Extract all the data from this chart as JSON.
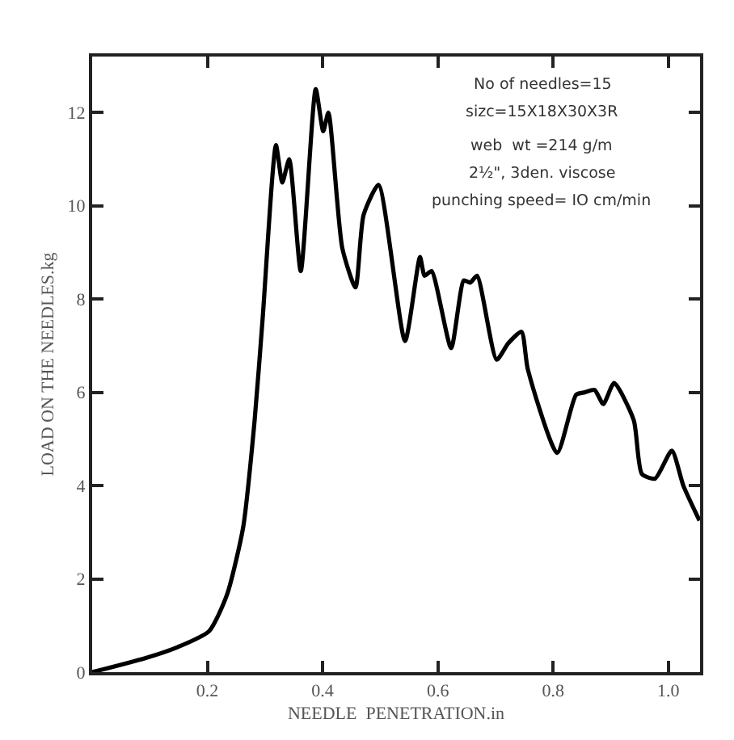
{
  "chart_data": {
    "type": "line",
    "xlabel": "NEEDLE  PENETRATION.in",
    "ylabel": "LOAD ON THE NEEDLES.kg",
    "annotations": [
      "No of needles=15",
      "sizc=15X18X30X3R",
      "web  wt =214 g/m",
      "2½\", 3den. viscose",
      "punching speed= IO cm/min"
    ],
    "xlim": [
      0,
      1.055
    ],
    "ylim": [
      0,
      13.2
    ],
    "xticks": [
      0.2,
      0.4,
      0.6,
      0.8,
      {
        "value": 1.0,
        "label": "1.0"
      }
    ],
    "yticks": [
      0,
      2,
      4,
      6,
      8,
      10,
      12
    ],
    "legend": false,
    "marker": "none",
    "line_style": "solid",
    "series": [
      {
        "color": "#000000",
        "x": [
          0,
          0.092,
          0.149,
          0.203,
          0.234,
          0.262,
          0.282,
          0.296,
          0.319,
          0.33,
          0.342,
          0.362,
          0.388,
          0.401,
          0.41,
          0.434,
          0.457,
          0.471,
          0.497,
          0.543,
          0.569,
          0.577,
          0.589,
          0.623,
          0.645,
          0.656,
          0.668,
          0.702,
          0.722,
          0.745,
          0.756,
          0.807,
          0.84,
          0.855,
          0.872,
          0.887,
          0.906,
          0.94,
          0.954,
          0.977,
          1.006,
          1.026,
          1.054
        ],
        "values": [
          0,
          0.3,
          0.54,
          0.88,
          1.66,
          3.1,
          5.4,
          7.6,
          11.3,
          10.5,
          11.0,
          8.6,
          12.5,
          11.6,
          12.0,
          9.1,
          8.25,
          9.8,
          10.45,
          7.1,
          8.9,
          8.5,
          8.6,
          6.95,
          8.4,
          8.35,
          8.5,
          6.7,
          7.05,
          7.3,
          6.5,
          4.7,
          5.95,
          6.0,
          6.05,
          5.75,
          6.2,
          5.4,
          4.25,
          4.15,
          4.75,
          4.0,
          3.25
        ]
      }
    ]
  }
}
